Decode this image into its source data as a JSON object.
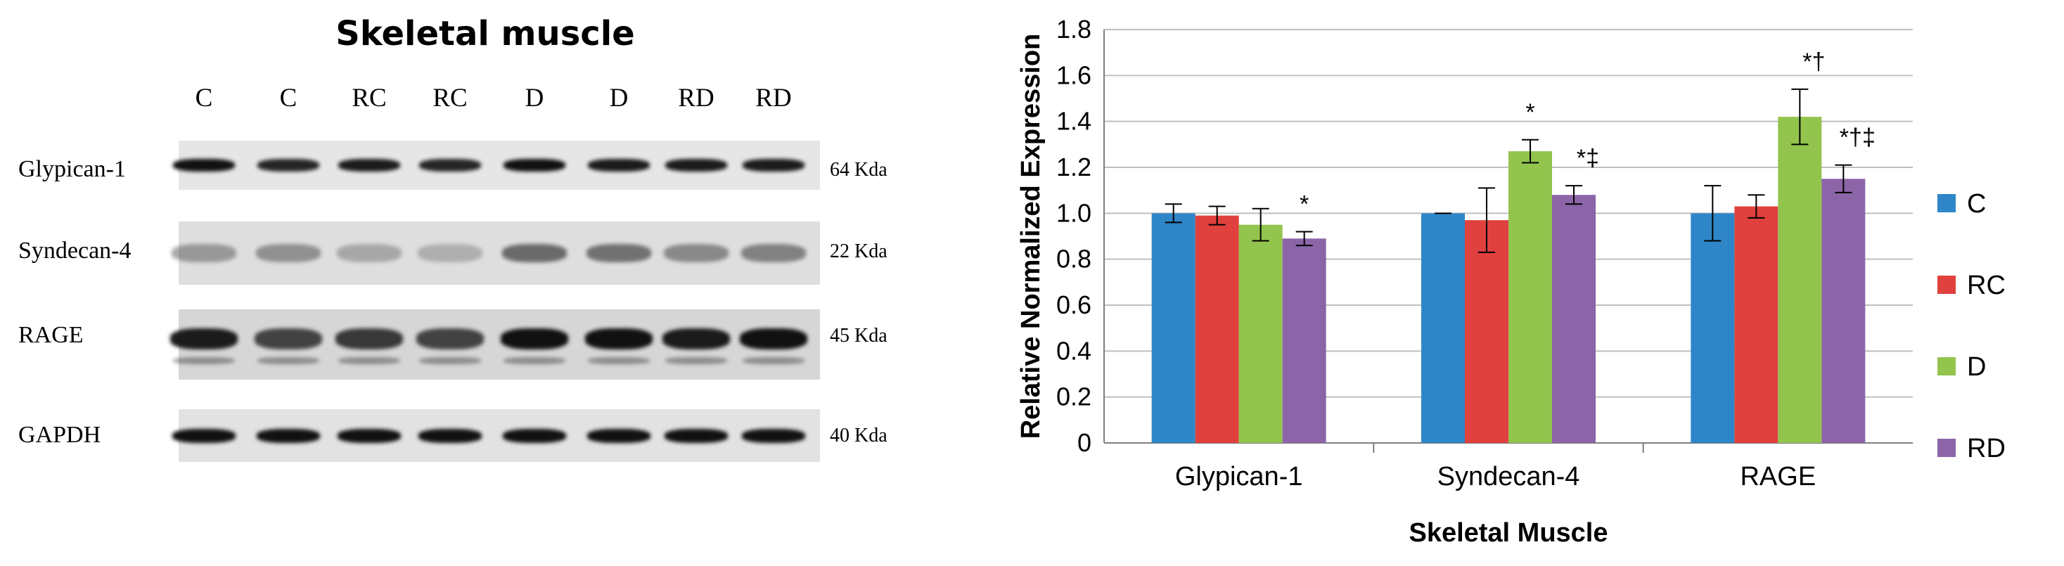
{
  "blot": {
    "title": "Skeletal muscle",
    "lanes": [
      "C",
      "C",
      "RC",
      "RC",
      "D",
      "D",
      "RD",
      "RD"
    ],
    "rows": [
      {
        "label": "Glypican-1",
        "kda": "64 Kda"
      },
      {
        "label": "Syndecan-4",
        "kda": "22 Kda"
      },
      {
        "label": "RAGE",
        "kda": "45 Kda"
      },
      {
        "label": "GAPDH",
        "kda": "40 Kda"
      }
    ]
  },
  "chart_data": {
    "type": "bar",
    "title": "",
    "xlabel": "Skeletal Muscle",
    "ylabel": "Relative Normalized Expression",
    "categories": [
      "Glypican-1",
      "Syndecan-4",
      "RAGE"
    ],
    "ylim": [
      0,
      1.8
    ],
    "yticks": [
      "0",
      "0.2",
      "0.4",
      "0.6",
      "0.8",
      "1.0",
      "1.2",
      "1.4",
      "1.6",
      "1.8"
    ],
    "grid": true,
    "legend_position": "right",
    "series": [
      {
        "name": "C",
        "color": "#2E86C8",
        "values": [
          1.0,
          1.0,
          1.0
        ],
        "errors": [
          0.04,
          0.0,
          0.12
        ]
      },
      {
        "name": "RC",
        "color": "#E0413E",
        "values": [
          0.99,
          0.97,
          1.03
        ],
        "errors": [
          0.04,
          0.14,
          0.05
        ]
      },
      {
        "name": "D",
        "color": "#92C44E",
        "values": [
          0.95,
          1.27,
          1.42
        ],
        "errors": [
          0.07,
          0.05,
          0.12
        ]
      },
      {
        "name": "RD",
        "color": "#8B65A8",
        "values": [
          0.89,
          1.08,
          1.15
        ],
        "errors": [
          0.03,
          0.04,
          0.06
        ]
      }
    ],
    "annotations": [
      {
        "category": "Glypican-1",
        "series": "RD",
        "text": "*"
      },
      {
        "category": "Syndecan-4",
        "series": "D",
        "text": "*"
      },
      {
        "category": "Syndecan-4",
        "series": "RD",
        "text": "*‡"
      },
      {
        "category": "RAGE",
        "series": "D",
        "text": "*†"
      },
      {
        "category": "RAGE",
        "series": "RD",
        "text": "*†‡"
      }
    ]
  }
}
